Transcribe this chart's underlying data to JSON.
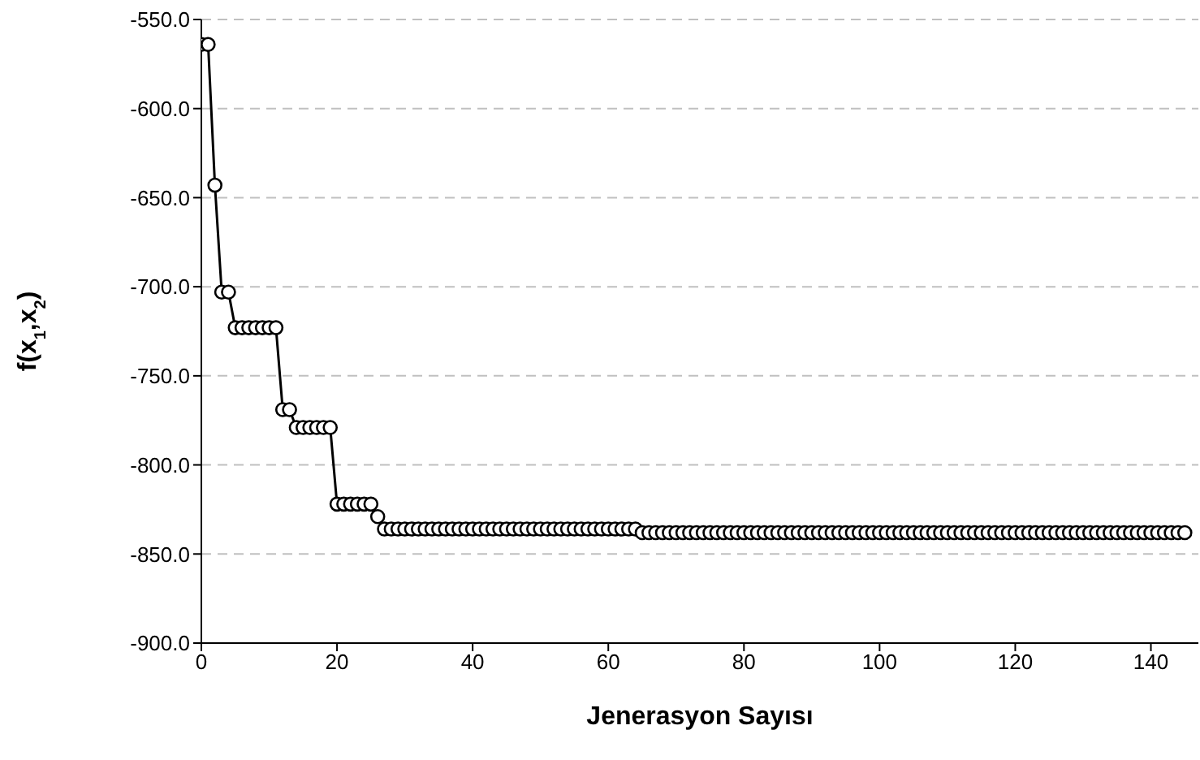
{
  "chart_data": {
    "type": "line",
    "xlabel": "Jenerasyon Sayısı",
    "ylabel": "f(x$_{1}$,x$_{2}$)",
    "x": [
      0,
      1,
      2,
      3,
      4,
      5,
      6,
      7,
      8,
      9,
      10,
      11,
      12,
      13,
      14,
      15,
      16,
      17,
      18,
      19,
      20,
      21,
      22,
      23,
      24,
      25,
      26,
      27,
      28,
      29,
      30,
      31,
      32,
      33,
      34,
      35,
      36,
      37,
      38,
      39,
      40,
      41,
      42,
      43,
      44,
      45,
      46,
      47,
      48,
      49,
      50,
      51,
      52,
      53,
      54,
      55,
      56,
      57,
      58,
      59,
      60,
      61,
      62,
      63,
      64,
      65,
      66,
      67,
      68,
      69,
      70,
      71,
      72,
      73,
      74,
      75,
      76,
      77,
      78,
      79,
      80,
      81,
      82,
      83,
      84,
      85,
      86,
      87,
      88,
      89,
      90,
      91,
      92,
      93,
      94,
      95,
      96,
      97,
      98,
      99,
      100,
      101,
      102,
      103,
      104,
      105,
      106,
      107,
      108,
      109,
      110,
      111,
      112,
      113,
      114,
      115,
      116,
      117,
      118,
      119,
      120,
      121,
      122,
      123,
      124,
      125,
      126,
      127,
      128,
      129,
      130,
      131,
      132,
      133,
      134,
      135,
      136,
      137,
      138,
      139,
      140,
      141,
      142,
      143,
      144,
      145
    ],
    "series": [
      {
        "color": "#000000",
        "values": [
          -564,
          -564,
          -643,
          -703,
          -703,
          -723,
          -723,
          -723,
          -723,
          -723,
          -723,
          -723,
          -769,
          -769,
          -779,
          -779,
          -779,
          -779,
          -779,
          -779,
          -822,
          -822,
          -822,
          -822,
          -822,
          -822,
          -829,
          -836,
          -836,
          -836,
          -836,
          -836,
          -836,
          -836,
          -836,
          -836,
          -836,
          -836,
          -836,
          -836,
          -836,
          -836,
          -836,
          -836,
          -836,
          -836,
          -836,
          -836,
          -836,
          -836,
          -836,
          -836,
          -836,
          -836,
          -836,
          -836,
          -836,
          -836,
          -836,
          -836,
          -836,
          -836,
          -836,
          -836,
          -836,
          -838,
          -838,
          -838,
          -838,
          -838,
          -838,
          -838,
          -838,
          -838,
          -838,
          -838,
          -838,
          -838,
          -838,
          -838,
          -838,
          -838,
          -838,
          -838,
          -838,
          -838,
          -838,
          -838,
          -838,
          -838,
          -838,
          -838,
          -838,
          -838,
          -838,
          -838,
          -838,
          -838,
          -838,
          -838,
          -838,
          -838,
          -838,
          -838,
          -838,
          -838,
          -838,
          -838,
          -838,
          -838,
          -838,
          -838,
          -838,
          -838,
          -838,
          -838,
          -838,
          -838,
          -838,
          -838,
          -838,
          -838,
          -838,
          -838,
          -838,
          -838,
          -838,
          -838,
          -838,
          -838,
          -838,
          -838,
          -838,
          -838,
          -838,
          -838,
          -838,
          -838,
          -838,
          -838,
          -838,
          -838,
          -838,
          -838,
          -838,
          -838
        ]
      }
    ],
    "xlim": [
      0,
      147
    ],
    "xticks": [
      0,
      20,
      40,
      60,
      80,
      100,
      120,
      140
    ],
    "ylim": [
      -900,
      -550
    ],
    "yticks": [
      {
        "value": -900,
        "label": "-900.0"
      },
      {
        "value": -850,
        "label": "-850.0"
      },
      {
        "value": -800,
        "label": "-800.0"
      },
      {
        "value": -750,
        "label": "-750.0"
      },
      {
        "value": -700,
        "label": "-700.0"
      },
      {
        "value": -650,
        "label": "-650.0"
      },
      {
        "value": -600,
        "label": "-600.0"
      },
      {
        "value": -550,
        "label": "-550.0"
      }
    ],
    "grid": "y",
    "marker": "circle",
    "line_style": "solid",
    "legend": false
  }
}
